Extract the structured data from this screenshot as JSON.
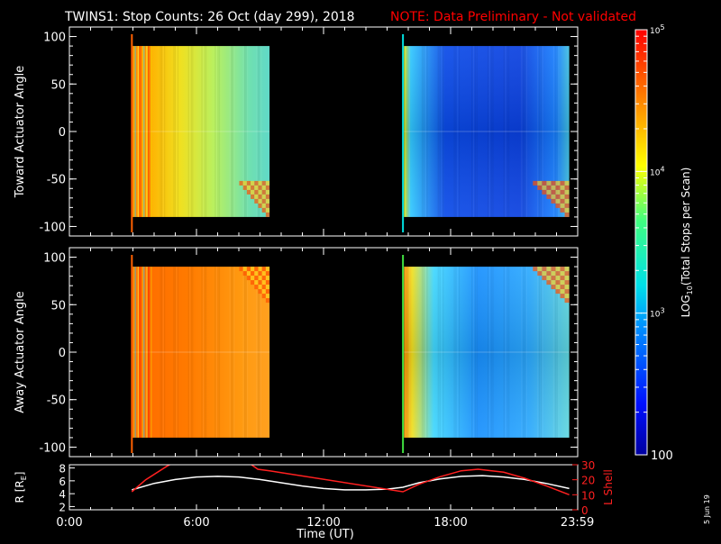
{
  "header": {
    "title": "TWINS1: Stop Counts: 26 Oct (day 299), 2018",
    "note": "NOTE: Data Preliminary - Not validated"
  },
  "footer": {
    "date_stamp": "5 Jun 19"
  },
  "colors": {
    "background": "#000000",
    "axes": "#ffffff",
    "note": "#ff0000",
    "r_line": "#ffffff",
    "l_shell_line": "#ff2020"
  },
  "chart_data": [
    {
      "type": "heatmap",
      "panel": "toward",
      "ylabel": "Toward Actuator Angle",
      "ylim": [
        -110,
        110
      ],
      "yticks": [
        100,
        50,
        0,
        -50,
        -100
      ],
      "xlim": [
        0,
        24
      ],
      "data_extent": {
        "y": [
          -90,
          90
        ]
      },
      "blocks": [
        {
          "start": 2.95,
          "end": 9.45,
          "level": "high",
          "log_counts_range": [
            3.6,
            4.7
          ]
        },
        {
          "start": 15.8,
          "end": 23.6,
          "level": "low",
          "log_counts_range": [
            2.3,
            4.6
          ]
        }
      ],
      "vertical_markers": [
        {
          "time": 2.95,
          "color": "#ff6000"
        },
        {
          "time": 15.75,
          "color": "#00e0e0"
        }
      ]
    },
    {
      "type": "heatmap",
      "panel": "away",
      "ylabel": "Away Actuator Angle",
      "ylim": [
        -110,
        110
      ],
      "yticks": [
        100,
        50,
        0,
        -50,
        -100
      ],
      "xlim": [
        0,
        24
      ],
      "data_extent": {
        "y": [
          -90,
          90
        ]
      },
      "blocks": [
        {
          "start": 2.95,
          "end": 9.45,
          "level": "high",
          "log_counts_range": [
            4.0,
            4.8
          ]
        },
        {
          "start": 15.8,
          "end": 23.6,
          "level": "mid",
          "log_counts_range": [
            2.6,
            4.7
          ]
        }
      ],
      "vertical_markers": [
        {
          "time": 2.95,
          "color": "#ff6000"
        },
        {
          "time": 15.75,
          "color": "#40e040"
        }
      ]
    },
    {
      "type": "line",
      "panel": "orbit",
      "ylabel": "R [RE]",
      "ylim": [
        1.5,
        8.5
      ],
      "yticks": [
        2,
        4,
        6,
        8
      ],
      "y2label": "L Shell",
      "y2lim": [
        0,
        30
      ],
      "y2ticks": [
        0,
        10,
        20,
        30
      ],
      "xlabel": "Time (UT)",
      "xticks": [
        "0:00",
        "6:00",
        "12:00",
        "18:00",
        "23:59"
      ],
      "xtick_values": [
        0,
        6,
        12,
        18,
        23.983
      ],
      "series": [
        {
          "axis": "left",
          "color": "#ffffff",
          "x": [
            2.95,
            4,
            5,
            6,
            7,
            8,
            9,
            10,
            11,
            12,
            13,
            14,
            15,
            15.75,
            16.5,
            17.5,
            18.5,
            19.5,
            20.5,
            21.5,
            22.5,
            23.6
          ],
          "y": [
            4.6,
            5.6,
            6.2,
            6.6,
            6.7,
            6.6,
            6.2,
            5.7,
            5.2,
            4.8,
            4.6,
            4.6,
            4.7,
            5.0,
            5.7,
            6.3,
            6.7,
            6.8,
            6.6,
            6.2,
            5.6,
            4.8
          ]
        },
        {
          "axis": "right",
          "color": "#ff2020",
          "x": [
            2.95,
            3.6,
            4.6,
            5.0,
            8.4,
            8.9,
            9.45,
            15.75,
            16.5,
            17.5,
            18.5,
            19.3,
            20.5,
            21.5,
            22.5,
            23.6
          ],
          "y": [
            12,
            20,
            29,
            32,
            32,
            27,
            26,
            12,
            17,
            22,
            26,
            27,
            25,
            21,
            16,
            10
          ]
        }
      ]
    }
  ],
  "colorbar": {
    "label": "LOG10(Total Stops per Scan)",
    "label_main": "LOG",
    "label_sub": "10",
    "label_rest": "(Total Stops per Scan)",
    "scale": "log",
    "range_log": [
      2,
      5
    ],
    "ticks": [
      {
        "log": 5,
        "base": "10",
        "exp": "5"
      },
      {
        "log": 4,
        "base": "10",
        "exp": "4"
      },
      {
        "log": 3,
        "base": "10",
        "exp": "3"
      },
      {
        "log": 2,
        "plain": "100"
      }
    ]
  }
}
